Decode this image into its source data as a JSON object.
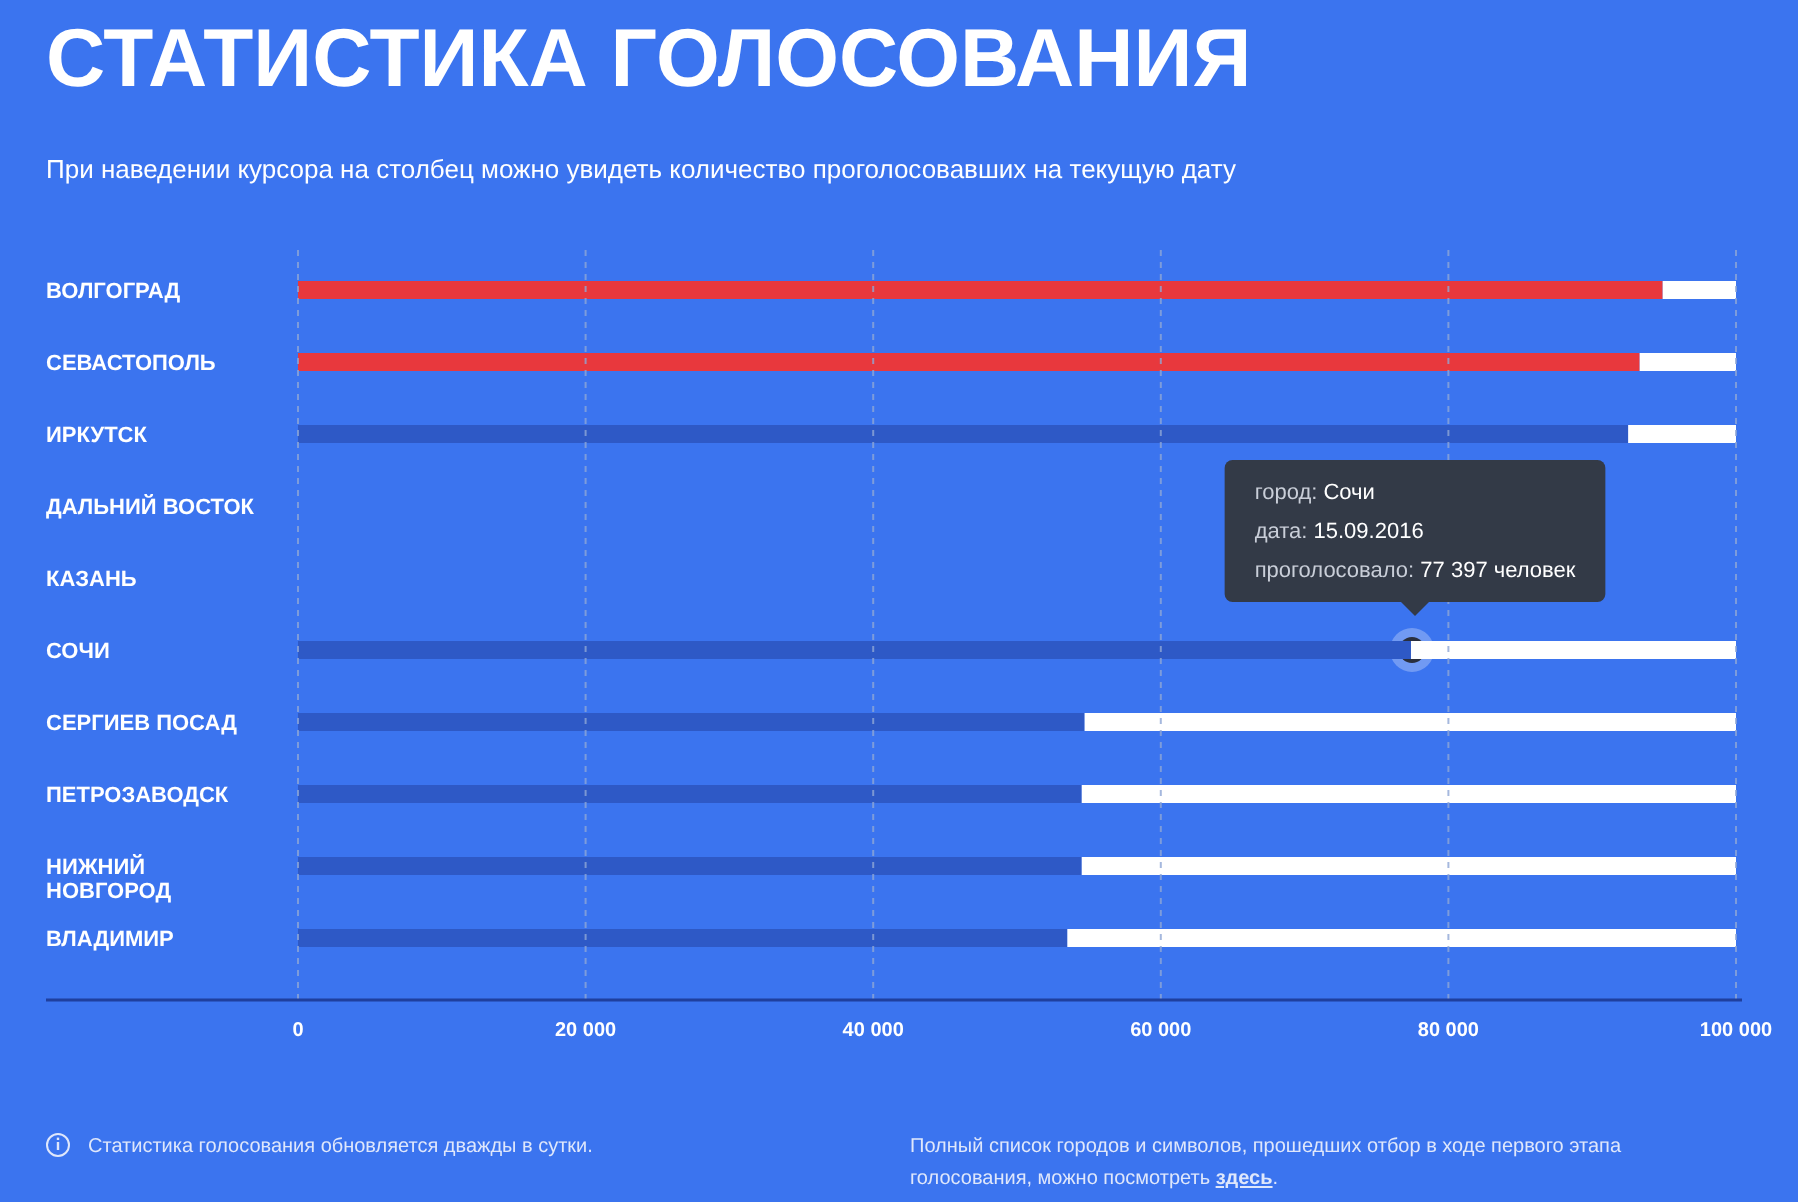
{
  "chart_data": {
    "type": "bar",
    "orientation": "horizontal",
    "stacked": true,
    "title": "СТАТИСТИКА ГОЛОСОВАНИЯ",
    "subtitle": "При наведении курсора на столбец можно увидеть количество проголосовавших на текущую дату",
    "categories": [
      "ВОЛГОГРАД",
      "СЕВАСТОПОЛЬ",
      "ИРКУТСК",
      "ДАЛЬНИЙ ВОСТОК",
      "КАЗАНЬ",
      "СОЧИ",
      "СЕРГИЕВ ПОСАД",
      "ПЕТРОЗАВОДСК",
      "НИЖНИЙ НОВГОРОД",
      "ВЛАДИМИР"
    ],
    "series": [
      {
        "colors": [
          "#e8383d",
          "#e8383d",
          "#2e59c6",
          null,
          null,
          "#2e59c6",
          "#2e59c6",
          "#2e59c6",
          "#2e59c6",
          "#2e59c6"
        ],
        "values": [
          94900,
          93300,
          92500,
          null,
          null,
          77397,
          54700,
          54500,
          54500,
          53500
        ]
      },
      {
        "color": "#ffffff",
        "values": [
          5100,
          6700,
          7500,
          null,
          null,
          22603,
          45300,
          45500,
          45500,
          46500
        ]
      }
    ],
    "xlim": [
      0,
      100000
    ],
    "xticks": [
      0,
      {
        "value": 20000,
        "label": "20 000"
      },
      {
        "value": 40000,
        "label": "40 000"
      },
      {
        "value": 60000,
        "label": "60 000"
      },
      {
        "value": 80000,
        "label": "80 000"
      },
      {
        "value": 100000,
        "label": "100 000"
      }
    ],
    "grid": "x",
    "annotations": [
      "город: Сочи",
      "дата: 15.09.2016",
      "проголосовало: 77 397 человек",
      "Статистика голосования обновляется дважды в сутки.",
      "Полный список городов и символов, прошедших отбор в ходе первого этапа голосования, можно посмотреть здесь."
    ]
  }
}
